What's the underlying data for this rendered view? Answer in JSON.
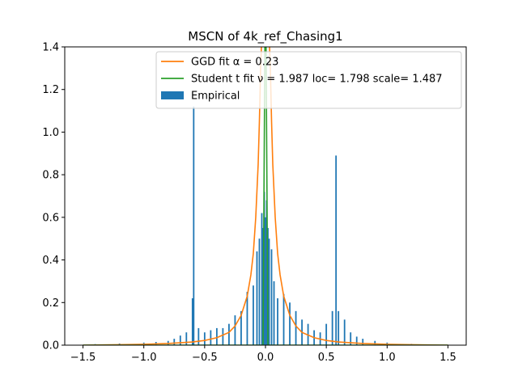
{
  "chart_data": {
    "type": "histogram",
    "title": "MSCN of 4k_ref_Chasing1",
    "xlabel": "",
    "ylabel": "",
    "xlim": [
      -1.65,
      1.65
    ],
    "ylim": [
      0,
      1.4
    ],
    "xticks": [
      -1.5,
      -1.0,
      -0.5,
      0.0,
      0.5,
      1.0,
      1.5
    ],
    "xtick_labels": [
      "−1.5",
      "−1.0",
      "−0.5",
      "0.0",
      "0.5",
      "1.0",
      "1.5"
    ],
    "yticks": [
      0.0,
      0.2,
      0.4,
      0.6,
      0.8,
      1.0,
      1.2,
      1.4
    ],
    "ytick_labels": [
      "0.0",
      "0.2",
      "0.4",
      "0.6",
      "0.8",
      "1.0",
      "1.2",
      "1.4"
    ],
    "grid": false,
    "legend_placement": "top-right",
    "series": [
      {
        "name": "GGD fit α = 0.23",
        "type": "line",
        "color": "#ff7f0e",
        "x": [
          -1.5,
          -1.2,
          -1.0,
          -0.8,
          -0.6,
          -0.5,
          -0.4,
          -0.3,
          -0.25,
          -0.2,
          -0.15,
          -0.12,
          -0.1,
          -0.08,
          -0.06,
          -0.05,
          -0.04,
          -0.03,
          0.03,
          0.04,
          0.05,
          0.06,
          0.08,
          0.1,
          0.12,
          0.15,
          0.2,
          0.25,
          0.3,
          0.4,
          0.5,
          0.6,
          0.8,
          1.0,
          1.2,
          1.5
        ],
        "y": [
          0.0,
          0.002,
          0.004,
          0.008,
          0.015,
          0.022,
          0.035,
          0.06,
          0.09,
          0.14,
          0.23,
          0.33,
          0.43,
          0.6,
          0.85,
          1.05,
          1.3,
          1.45,
          1.45,
          1.3,
          1.05,
          0.85,
          0.6,
          0.43,
          0.33,
          0.23,
          0.14,
          0.09,
          0.06,
          0.035,
          0.022,
          0.015,
          0.008,
          0.004,
          0.002,
          0.0
        ]
      },
      {
        "name": "Student t fit ν = 1.987 loc= 1.798 scale= 1.487",
        "type": "line",
        "color": "#2ca02c",
        "x": [
          -1.5,
          -0.02,
          -0.005,
          0.0,
          0.005,
          0.02,
          1.5
        ],
        "y": [
          0.0,
          0.0,
          1.4,
          1.4,
          1.4,
          0.0,
          0.0
        ]
      },
      {
        "name": "Empirical",
        "type": "bar",
        "color": "#1f77b4",
        "bin_centers": [
          -1.4,
          -1.2,
          -1.0,
          -0.9,
          -0.8,
          -0.75,
          -0.7,
          -0.65,
          -0.6,
          -0.59,
          -0.55,
          -0.5,
          -0.45,
          -0.4,
          -0.35,
          -0.3,
          -0.25,
          -0.2,
          -0.15,
          -0.1,
          -0.07,
          -0.05,
          -0.03,
          -0.02,
          -0.01,
          0.0,
          0.01,
          0.02,
          0.03,
          0.05,
          0.07,
          0.1,
          0.15,
          0.2,
          0.25,
          0.3,
          0.35,
          0.4,
          0.45,
          0.5,
          0.55,
          0.58,
          0.6,
          0.65,
          0.7,
          0.75,
          0.8,
          0.9,
          1.0,
          1.2,
          1.4
        ],
        "values": [
          0.005,
          0.008,
          0.012,
          0.015,
          0.02,
          0.03,
          0.045,
          0.06,
          0.22,
          1.12,
          0.08,
          0.06,
          0.07,
          0.08,
          0.08,
          0.1,
          0.14,
          0.16,
          0.25,
          0.28,
          0.44,
          0.5,
          0.62,
          0.55,
          0.72,
          0.6,
          0.68,
          0.55,
          0.5,
          0.45,
          0.3,
          0.22,
          0.24,
          0.2,
          0.16,
          0.12,
          0.1,
          0.07,
          0.06,
          0.1,
          0.16,
          0.89,
          0.16,
          0.12,
          0.06,
          0.04,
          0.03,
          0.02,
          0.012,
          0.006,
          0.003
        ]
      }
    ]
  }
}
